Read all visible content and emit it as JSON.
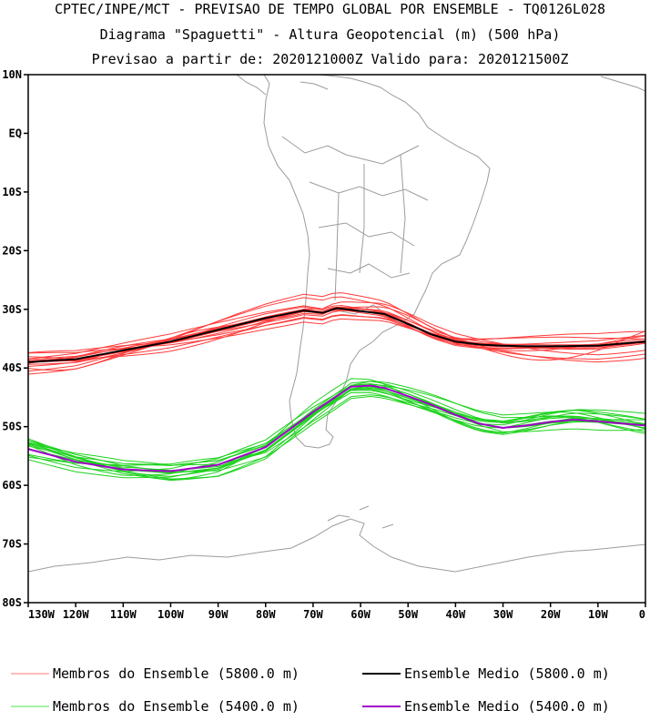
{
  "chart_data": {
    "type": "line",
    "title_lines": [
      "CPTEC/INPE/MCT - PREVISAO DE TEMPO GLOBAL POR ENSEMBLE - TQ0126L028",
      "Diagrama \"Spaguetti\" - Altura Geopotencial (m) (500 hPa)",
      "Previsao a partir de: 2020121000Z  Valido para: 2020121500Z"
    ],
    "x_ticks": [
      "130W",
      "120W",
      "110W",
      "100W",
      "90W",
      "80W",
      "70W",
      "60W",
      "50W",
      "40W",
      "30W",
      "20W",
      "10W",
      "0"
    ],
    "y_ticks": [
      "10N",
      "EQ",
      "10S",
      "20S",
      "30S",
      "40S",
      "50S",
      "60S",
      "70S",
      "80S"
    ],
    "xlim": [
      -130,
      0
    ],
    "ylim": [
      -80,
      10
    ],
    "series": [
      {
        "name": "Ensemble Medio (5800.0 m)",
        "color": "#000000",
        "lon": [
          -130,
          -120,
          -110,
          -100,
          -90,
          -80,
          -72,
          -68,
          -65,
          -60,
          -55,
          -50,
          -45,
          -40,
          -35,
          -30,
          -25,
          -20,
          -10,
          0
        ],
        "lat": [
          -39.0,
          -38.5,
          -37.0,
          -35.5,
          -33.5,
          -31.5,
          -30.2,
          -30.6,
          -29.8,
          -30.3,
          -30.8,
          -32.5,
          -34.3,
          -35.5,
          -36.0,
          -36.2,
          -36.3,
          -36.3,
          -36.2,
          -35.5
        ]
      },
      {
        "name": "Ensemble Medio (5400.0 m)",
        "color": "#a000c8",
        "lon": [
          -130,
          -120,
          -110,
          -100,
          -90,
          -80,
          -70,
          -62,
          -58,
          -55,
          -50,
          -45,
          -40,
          -35,
          -30,
          -25,
          -20,
          -15,
          -10,
          0
        ],
        "lat": [
          -53.8,
          -56.0,
          -57.3,
          -57.6,
          -56.5,
          -53.5,
          -47.5,
          -43.2,
          -43.0,
          -43.4,
          -44.8,
          -46.3,
          -48.0,
          -49.5,
          -50.2,
          -49.8,
          -49.2,
          -48.8,
          -49.1,
          -49.8
        ]
      }
    ],
    "members": [
      {
        "name": "Membros do Ensemble (5800.0 m)",
        "color": "#ff3b3b",
        "count": 15,
        "spread": 1.8
      },
      {
        "name": "Membros do Ensemble (5400.0 m)",
        "color": "#1ed21e",
        "count": 15,
        "spread": 1.6
      }
    ],
    "legend": {
      "position": "bottom",
      "entries": [
        {
          "label": "Membros do Ensemble (5800.0 m)",
          "color": "#ff7a7a"
        },
        {
          "label": "Ensemble Medio (5800.0 m)",
          "color": "#000000"
        },
        {
          "label": "Membros do Ensemble (5400.0 m)",
          "color": "#4ee64e"
        },
        {
          "label": "Ensemble Medio (5400.0 m)",
          "color": "#a000c8"
        }
      ]
    }
  }
}
